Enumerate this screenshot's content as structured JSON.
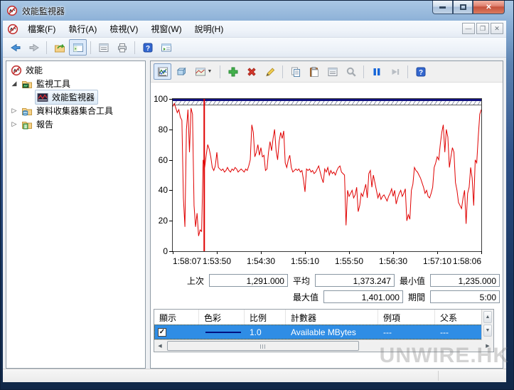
{
  "window": {
    "title": "效能監視器",
    "controls": {
      "minimize": "minimize",
      "maximize": "maximize",
      "close": "close"
    }
  },
  "menu_bar": {
    "items": [
      "檔案(F)",
      "執行(A)",
      "檢視(V)",
      "視窗(W)",
      "說明(H)"
    ]
  },
  "main_toolbar": {
    "icons": [
      "back-icon",
      "forward-icon",
      "export-icon",
      "show-hide-console-tree-icon",
      "console-properties-icon",
      "print-icon",
      "help-icon",
      "new-window-icon"
    ]
  },
  "tree": {
    "root": {
      "label": "效能",
      "icon": "perfmon-logo-icon"
    },
    "items": [
      {
        "label": "監視工具",
        "icon": "monitor-tools-folder-icon",
        "expanded": true
      },
      {
        "label": "效能監視器",
        "icon": "performance-monitor-icon",
        "selected": true
      },
      {
        "label": "資料收集器集合工具",
        "icon": "data-collector-folder-icon",
        "expanded": false
      },
      {
        "label": "報告",
        "icon": "reports-folder-icon",
        "expanded": false
      }
    ]
  },
  "graph_toolbar": {
    "icons": [
      "view-current-activity-icon",
      "view-log-data-icon",
      "chart-type-icon",
      "chevron-down-icon",
      "add-counter-icon",
      "delete-counter-icon",
      "highlight-icon",
      "copy-properties-icon",
      "paste-counter-list-icon",
      "properties-icon",
      "zoom-icon",
      "freeze-display-icon",
      "update-data-icon",
      "help-icon"
    ]
  },
  "chart_data": {
    "type": "line",
    "title": "",
    "xlabel": "",
    "ylabel": "",
    "ylim": [
      0,
      100
    ],
    "grid": false,
    "y_ticks": [
      100,
      80,
      60,
      40,
      20,
      0
    ],
    "x_ticks": [
      "1:58:07",
      "1:53:50",
      "1:54:30",
      "1:55:10",
      "1:55:50",
      "1:56:30",
      "1:57:10",
      "1:58:06"
    ],
    "indicator_x_percent": 10.2,
    "line_color": "#e00000",
    "series": [
      {
        "name": "Available MBytes",
        "values": [
          95,
          97,
          94,
          91,
          93,
          88,
          86,
          35,
          16,
          80,
          93,
          65,
          94,
          90,
          30,
          16,
          25,
          10,
          14,
          13,
          60,
          55,
          63,
          70,
          67,
          62,
          55,
          53,
          56,
          65,
          55,
          54,
          53,
          54,
          52,
          53,
          55,
          53,
          52,
          54,
          53,
          55,
          54,
          52,
          53,
          54,
          53,
          52,
          54,
          53,
          56,
          60,
          83,
          78,
          62,
          65,
          70,
          63,
          68,
          62,
          63,
          53,
          54,
          65,
          72,
          66,
          74,
          80,
          66,
          60,
          72,
          78,
          74,
          79,
          58,
          55,
          60,
          63,
          55,
          52,
          53,
          54,
          53,
          54,
          52,
          53,
          47,
          39,
          54,
          53,
          54,
          52,
          53,
          51,
          52,
          54,
          56,
          52,
          48,
          45,
          54,
          52,
          55,
          50,
          53,
          51,
          52,
          50,
          53,
          55,
          56,
          52,
          51,
          50,
          17,
          40,
          36,
          38,
          40,
          35,
          37,
          42,
          26,
          30,
          38,
          36,
          40,
          44,
          35,
          51,
          53,
          42,
          50,
          45,
          40,
          35,
          38,
          34,
          36,
          37,
          35,
          33,
          36,
          38,
          41,
          36,
          40,
          31,
          35,
          38,
          40,
          36,
          38,
          41,
          20,
          24,
          21,
          40,
          44,
          55,
          53,
          52,
          50,
          48,
          45,
          42,
          38,
          40,
          36,
          35,
          38,
          42,
          55,
          58,
          62,
          60,
          70,
          78,
          83,
          65,
          80,
          75,
          55,
          62,
          68,
          65,
          45,
          40,
          32,
          30,
          28,
          35,
          40,
          18,
          38,
          42,
          55,
          48,
          30,
          60,
          58,
          75,
          90,
          93
        ]
      }
    ]
  },
  "stats": {
    "last_label": "上次",
    "last_value": "1,291.000",
    "avg_label": "平均",
    "avg_value": "1,373.247",
    "min_label": "最小值",
    "min_value": "1,235.000",
    "max_label": "最大值",
    "max_value": "1,401.000",
    "duration_label": "期間",
    "duration_value": "5:00"
  },
  "counter_table": {
    "columns": [
      "顯示",
      "色彩",
      "比例",
      "計數器",
      "例項",
      "父系"
    ],
    "rows": [
      {
        "show": true,
        "color": "#001080",
        "scale": "1.0",
        "counter": "Available MBytes",
        "instance": "---",
        "parent": "---"
      }
    ]
  },
  "watermark": "UNWIRE.HK"
}
